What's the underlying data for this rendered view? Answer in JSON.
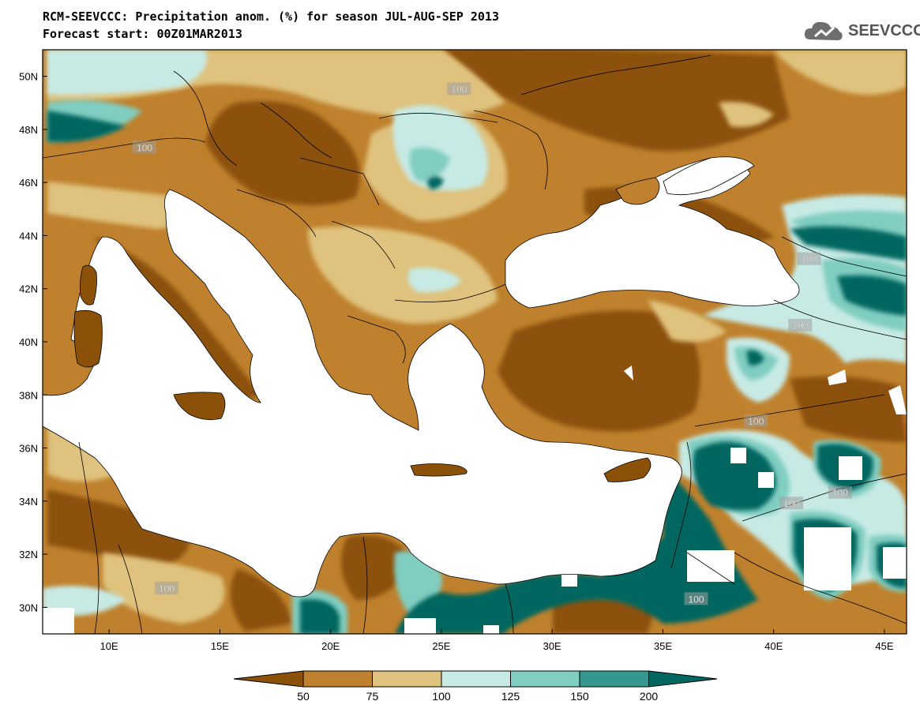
{
  "header": {
    "title_line_1": "RCM-SEEVCCC: Precipitation anom. (%) for season JUL-AUG-SEP 2013",
    "title_line_2": "Forecast start: 00Z01MAR2013"
  },
  "logo": {
    "text": "SEEVCCC",
    "icon": "cloud-icon"
  },
  "map": {
    "region": "Mediterranean / Balkans / Black Sea",
    "lon_range": [
      7,
      46
    ],
    "lat_range": [
      29,
      51
    ],
    "x_ticks": [
      {
        "label": "10E",
        "value": 10
      },
      {
        "label": "15E",
        "value": 15
      },
      {
        "label": "20E",
        "value": 20
      },
      {
        "label": "25E",
        "value": 25
      },
      {
        "label": "30E",
        "value": 30
      },
      {
        "label": "35E",
        "value": 35
      },
      {
        "label": "40E",
        "value": 40
      },
      {
        "label": "45E",
        "value": 45
      }
    ],
    "y_ticks": [
      {
        "label": "30N",
        "value": 30
      },
      {
        "label": "32N",
        "value": 32
      },
      {
        "label": "34N",
        "value": 34
      },
      {
        "label": "36N",
        "value": 36
      },
      {
        "label": "38N",
        "value": 38
      },
      {
        "label": "40N",
        "value": 40
      },
      {
        "label": "42N",
        "value": 42
      },
      {
        "label": "44N",
        "value": 44
      },
      {
        "label": "46N",
        "value": 46
      },
      {
        "label": "48N",
        "value": 48
      },
      {
        "label": "50N",
        "value": 50
      }
    ],
    "contour_labels": [
      {
        "text": "100",
        "lon": 25.8,
        "lat": 49.5
      },
      {
        "text": "100",
        "lon": 11.6,
        "lat": 47.3
      },
      {
        "text": "100",
        "lon": 41.6,
        "lat": 43.1
      },
      {
        "text": "100",
        "lon": 41.2,
        "lat": 40.6
      },
      {
        "text": "100",
        "lon": 39.2,
        "lat": 37.0
      },
      {
        "text": "100",
        "lon": 40.8,
        "lat": 33.9
      },
      {
        "text": "100",
        "lon": 43.0,
        "lat": 34.3
      },
      {
        "text": "100",
        "lon": 12.6,
        "lat": 30.7
      },
      {
        "text": "100",
        "lon": 36.5,
        "lat": 30.3
      }
    ]
  },
  "colorbar": {
    "levels": [
      "50",
      "75",
      "100",
      "125",
      "150",
      "200"
    ],
    "colors": [
      "#8c5109",
      "#bf812d",
      "#dfc27d",
      "#c7eae5",
      "#80cdc1",
      "#35978f",
      "#01665e"
    ]
  },
  "colors": {
    "very_dry": "#8c5109",
    "dry": "#bf812d",
    "slightly_dry": "#dfc27d",
    "slightly_wet": "#c7eae5",
    "wet": "#80cdc1",
    "very_wet": "#35978f",
    "extreme_wet": "#01665e",
    "sea": "#ffffff"
  }
}
